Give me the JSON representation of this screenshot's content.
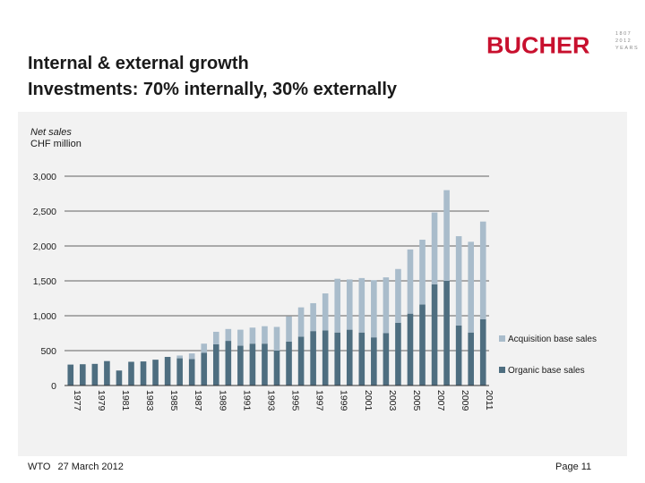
{
  "header": {
    "title_line1": "Internal & external growth",
    "title_line2": "Investments: 70% internally, 30% externally",
    "logo_text": "BUCHER",
    "seal_lines": [
      "1807",
      "2012",
      "YEARS"
    ]
  },
  "footer": {
    "left": "WTO",
    "date": "27 March 2012",
    "page": "Page 11"
  },
  "colors": {
    "organic": "#4e6e80",
    "acquisition": "#a9bccb",
    "brand": "#c8102e",
    "panel": "#f2f2f2"
  },
  "chart_data": {
    "type": "bar",
    "stacked": true,
    "title": "",
    "ylabel_line1": "Net sales",
    "ylabel_line2": "CHF million",
    "xlabel": "",
    "ylim": [
      0,
      3000
    ],
    "yticks": [
      0,
      500,
      1000,
      1500,
      2000,
      2500,
      3000
    ],
    "ytick_labels": [
      "0",
      "500",
      "1,000",
      "1,500",
      "2,000",
      "2,500",
      "3,000"
    ],
    "grid": true,
    "legend_position": "right",
    "categories": [
      "1977",
      "1978",
      "1979",
      "1980",
      "1981",
      "1982",
      "1983",
      "1984",
      "1985",
      "1986",
      "1987",
      "1988",
      "1989",
      "1990",
      "1991",
      "1992",
      "1993",
      "1994",
      "1995",
      "1996",
      "1997",
      "1998",
      "1999",
      "2000",
      "2001",
      "2002",
      "2003",
      "2004",
      "2005",
      "2006",
      "2007",
      "2008",
      "2009",
      "2010",
      "2011"
    ],
    "xtick_labels": [
      "1977",
      "1979",
      "1981",
      "1983",
      "1985",
      "1987",
      "1989",
      "1991",
      "1993",
      "1995",
      "1997",
      "1999",
      "2001",
      "2003",
      "2005",
      "2007",
      "2009",
      "2011"
    ],
    "series": [
      {
        "name": "Organic base sales",
        "values": [
          300,
          305,
          310,
          350,
          215,
          340,
          345,
          370,
          410,
          390,
          380,
          470,
          590,
          640,
          570,
          600,
          600,
          500,
          630,
          700,
          780,
          790,
          760,
          800,
          760,
          690,
          750,
          900,
          1030,
          1160,
          1450,
          1500,
          860,
          760,
          950
        ]
      },
      {
        "name": "Acquisition base sales",
        "values": [
          0,
          0,
          0,
          0,
          0,
          0,
          0,
          0,
          0,
          40,
          80,
          130,
          180,
          170,
          230,
          230,
          250,
          340,
          360,
          420,
          400,
          530,
          770,
          720,
          780,
          820,
          800,
          770,
          920,
          930,
          1030,
          1300,
          1280,
          1300,
          1400
        ]
      }
    ],
    "legend": [
      "Acquisition base sales",
      "Organic base sales"
    ]
  }
}
